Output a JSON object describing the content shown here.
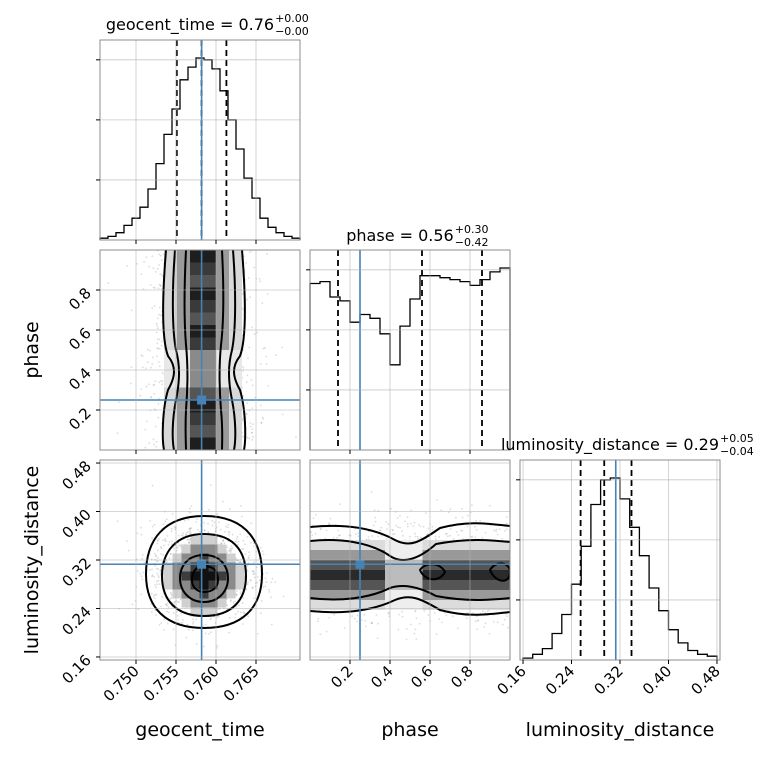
{
  "chart_data": {
    "type": "corner",
    "parameters": [
      "geocent_time",
      "phase",
      "luminosity_distance"
    ],
    "truth": {
      "geocent_time": 0.7582,
      "phase": 0.25,
      "luminosity_distance": 0.313
    },
    "titles": [
      {
        "prefix": "geocent_time = ",
        "value": "0.76",
        "plus": "+0.00",
        "minus": "−0.00"
      },
      {
        "prefix": "phase = ",
        "value": "0.56",
        "plus": "+0.30",
        "minus": "−0.42"
      },
      {
        "prefix": "luminosity_distance = ",
        "value": "0.29",
        "plus": "+0.05",
        "minus": "−0.04"
      }
    ],
    "axis_labels": {
      "x": [
        "geocent_time",
        "phase",
        "luminosity_distance"
      ],
      "y": [
        "phase",
        "luminosity_distance"
      ]
    },
    "ticks": {
      "geocent_time": [
        "0.750",
        "0.755",
        "0.760",
        "0.765"
      ],
      "phase": [
        "0.2",
        "0.4",
        "0.6",
        "0.8"
      ],
      "luminosity_distance": [
        "0.16",
        "0.24",
        "0.32",
        "0.40",
        "0.48"
      ]
    },
    "histograms": {
      "geocent_time": {
        "range": [
          0.7455,
          0.7705
        ],
        "quantiles": [
          0.7551,
          0.7582,
          0.7613
        ],
        "counts": [
          0.01,
          0.02,
          0.04,
          0.08,
          0.12,
          0.18,
          0.28,
          0.42,
          0.58,
          0.72,
          0.88,
          0.95,
          1.0,
          0.99,
          0.94,
          0.82,
          0.66,
          0.5,
          0.34,
          0.23,
          0.12,
          0.07,
          0.04,
          0.02,
          0.01
        ]
      },
      "phase": {
        "range": [
          0.0,
          1.0
        ],
        "quantiles": [
          0.14,
          0.56,
          0.86
        ],
        "counts": [
          0.86,
          0.87,
          0.79,
          0.77,
          0.66,
          0.7,
          0.68,
          0.6,
          0.44,
          0.64,
          0.78,
          0.9,
          0.9,
          0.89,
          0.88,
          0.87,
          0.85,
          0.88,
          0.92,
          0.94
        ]
      },
      "luminosity_distance": {
        "range": [
          0.16,
          0.48
        ],
        "quantiles": [
          0.255,
          0.294,
          0.339
        ],
        "counts": [
          0.01,
          0.03,
          0.06,
          0.14,
          0.24,
          0.4,
          0.6,
          0.82,
          0.95,
          0.96,
          0.85,
          0.7,
          0.55,
          0.38,
          0.26,
          0.16,
          0.09,
          0.05,
          0.03,
          0.02
        ]
      }
    }
  }
}
